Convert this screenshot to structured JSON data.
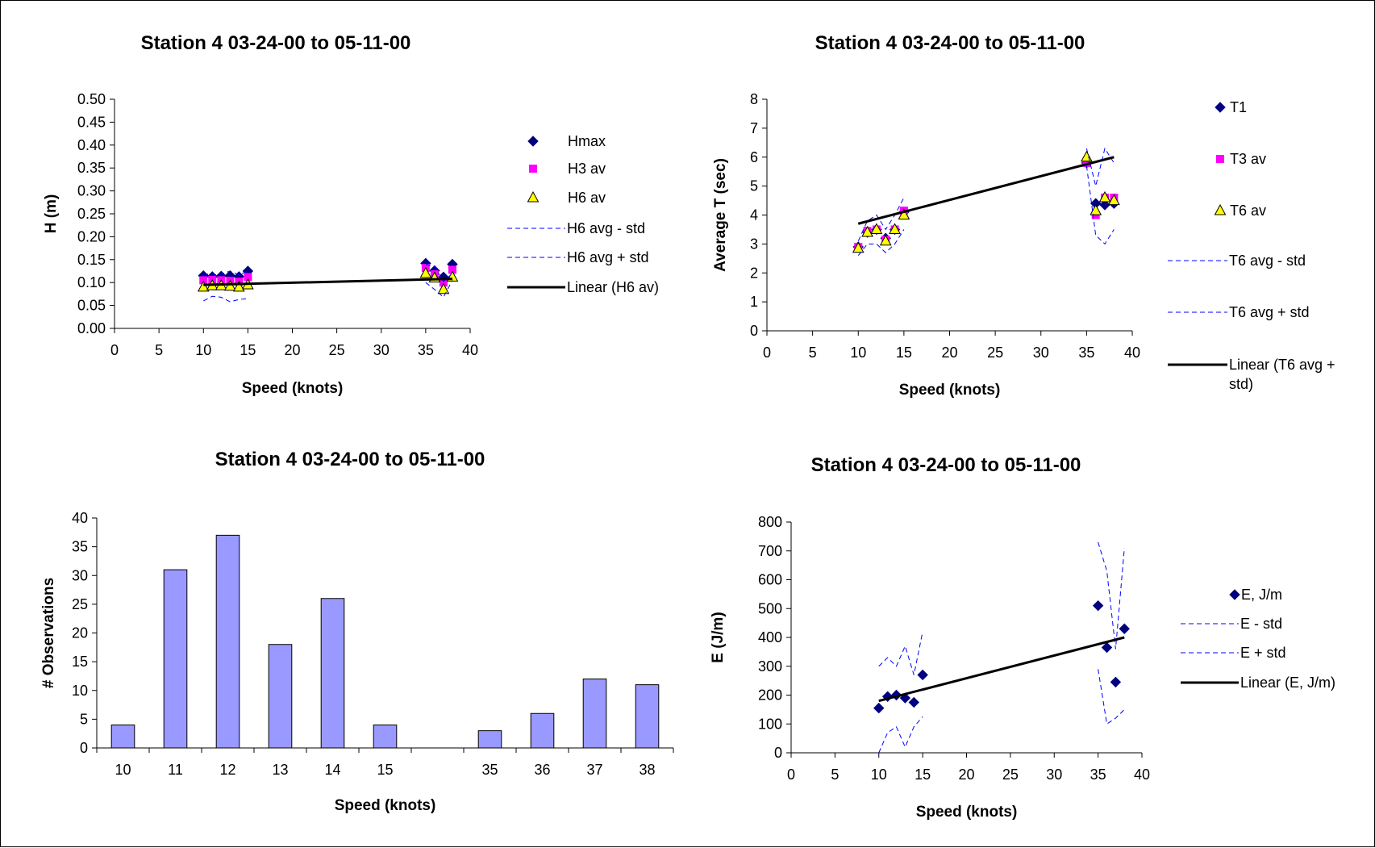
{
  "chart_data": [
    {
      "type": "scatter",
      "title": "Station 4 03-24-00 to 05-11-00",
      "xlabel": "Speed (knots)",
      "ylabel": "H (m)",
      "xlim": [
        0,
        40
      ],
      "ylim": [
        0,
        0.5
      ],
      "x_ticks": [
        "0",
        "5",
        "10",
        "15",
        "20",
        "25",
        "30",
        "35",
        "40"
      ],
      "y_ticks": [
        "0.00",
        "0.05",
        "0.10",
        "0.15",
        "0.20",
        "0.25",
        "0.30",
        "0.35",
        "0.40",
        "0.45",
        "0.50"
      ],
      "legend_position": "right",
      "x": [
        10,
        11,
        12,
        13,
        14,
        15,
        35,
        36,
        37,
        38
      ],
      "series": [
        {
          "name": "Hmax",
          "kind": "marker",
          "marker": "diamond",
          "color": "#000080",
          "values": [
            0.115,
            0.113,
            0.114,
            0.115,
            0.113,
            0.125,
            0.142,
            0.126,
            0.112,
            0.14
          ]
        },
        {
          "name": "H3 av",
          "kind": "marker",
          "marker": "square",
          "color": "#ff00ff",
          "values": [
            0.105,
            0.106,
            0.105,
            0.104,
            0.102,
            0.112,
            0.132,
            0.118,
            0.1,
            0.128
          ]
        },
        {
          "name": "H6 av",
          "kind": "marker",
          "marker": "triangle",
          "color": "#ffff00",
          "values": [
            0.09,
            0.093,
            0.093,
            0.092,
            0.09,
            0.095,
            0.12,
            0.11,
            0.085,
            0.112
          ]
        },
        {
          "name": "H6 avg - std",
          "kind": "dashed",
          "color": "#0000ff",
          "values": [
            0.06,
            0.07,
            0.068,
            0.058,
            0.063,
            0.065,
            0.1,
            0.085,
            0.068,
            0.105
          ]
        },
        {
          "name": "H6 avg + std",
          "kind": "dashed",
          "color": "#0000ff",
          "values": [
            0.12,
            0.116,
            0.119,
            0.125,
            0.117,
            0.125,
            0.14,
            0.135,
            0.102,
            0.12
          ]
        },
        {
          "name": "Linear (H6 av)",
          "kind": "trend",
          "color": "#000000",
          "x": [
            10,
            38
          ],
          "values": [
            0.095,
            0.108
          ]
        }
      ]
    },
    {
      "type": "scatter",
      "title": "Station 4 03-24-00 to 05-11-00",
      "xlabel": "Speed (knots)",
      "ylabel": "Average T (sec)",
      "xlim": [
        0,
        40
      ],
      "ylim": [
        0,
        8
      ],
      "x_ticks": [
        "0",
        "5",
        "10",
        "15",
        "20",
        "25",
        "30",
        "35",
        "40"
      ],
      "y_ticks": [
        "0",
        "1",
        "2",
        "3",
        "4",
        "5",
        "6",
        "7",
        "8"
      ],
      "legend_position": "right",
      "x": [
        10,
        11,
        12,
        13,
        14,
        15,
        35,
        36,
        37,
        38
      ],
      "series": [
        {
          "name": "T1",
          "kind": "marker",
          "marker": "diamond",
          "color": "#000080",
          "values": [
            2.9,
            3.4,
            3.5,
            3.2,
            3.5,
            4.1,
            5.8,
            4.4,
            4.35,
            4.4
          ]
        },
        {
          "name": "T3 av",
          "kind": "marker",
          "marker": "square",
          "color": "#ff00ff",
          "values": [
            2.9,
            3.45,
            3.5,
            3.15,
            3.5,
            4.15,
            5.8,
            4.0,
            4.6,
            4.6
          ]
        },
        {
          "name": "T6 av",
          "kind": "marker",
          "marker": "triangle",
          "color": "#ffff00",
          "values": [
            2.85,
            3.4,
            3.5,
            3.1,
            3.5,
            4.0,
            6.0,
            4.15,
            4.6,
            4.5
          ]
        },
        {
          "name": "T6 avg - std",
          "kind": "dashed",
          "color": "#0000ff",
          "values": [
            2.6,
            3.0,
            3.0,
            2.7,
            3.0,
            3.5,
            5.7,
            3.3,
            3.0,
            3.5
          ]
        },
        {
          "name": "T6 avg + std",
          "kind": "dashed",
          "color": "#0000ff",
          "values": [
            3.1,
            3.8,
            4.0,
            3.5,
            4.0,
            4.6,
            6.3,
            5.0,
            6.3,
            5.8
          ]
        },
        {
          "name": "Linear (T6 avg + std)",
          "kind": "trend",
          "color": "#000000",
          "x": [
            10,
            38
          ],
          "values": [
            3.7,
            6.0
          ]
        }
      ]
    },
    {
      "type": "bar",
      "title": "Station 4 03-24-00 to 05-11-00",
      "xlabel": "Speed (knots)",
      "ylabel": "# Observations",
      "ylim": [
        0,
        40
      ],
      "y_ticks": [
        "0",
        "5",
        "10",
        "15",
        "20",
        "25",
        "30",
        "35",
        "40"
      ],
      "categories": [
        "10",
        "11",
        "12",
        "13",
        "14",
        "15",
        "",
        "35",
        "36",
        "37",
        "38"
      ],
      "values": [
        4,
        31,
        37,
        18,
        26,
        4,
        0,
        3,
        6,
        12,
        11
      ],
      "bar_color": "#9999ff"
    },
    {
      "type": "scatter",
      "title": "Station 4 03-24-00 to 05-11-00",
      "xlabel": "Speed (knots)",
      "ylabel": "E (J/m)",
      "xlim": [
        0,
        40
      ],
      "ylim": [
        0,
        800
      ],
      "x_ticks": [
        "0",
        "5",
        "10",
        "15",
        "20",
        "25",
        "30",
        "35",
        "40"
      ],
      "y_ticks": [
        "0",
        "100",
        "200",
        "300",
        "400",
        "500",
        "600",
        "700",
        "800"
      ],
      "legend_position": "right",
      "x": [
        10,
        11,
        12,
        13,
        14,
        15,
        35,
        36,
        37,
        38
      ],
      "series": [
        {
          "name": "E, J/m",
          "kind": "marker",
          "marker": "diamond",
          "color": "#000080",
          "values": [
            155,
            195,
            200,
            190,
            175,
            270,
            510,
            365,
            245,
            430
          ]
        },
        {
          "name": "E - std",
          "kind": "dashed",
          "color": "#0000ff",
          "values": [
            0,
            70,
            90,
            20,
            90,
            125,
            290,
            100,
            120,
            150
          ]
        },
        {
          "name": "E + std",
          "kind": "dashed",
          "color": "#0000ff",
          "values": [
            300,
            330,
            300,
            370,
            270,
            420,
            730,
            630,
            360,
            710
          ]
        },
        {
          "name": "Linear (E, J/m)",
          "kind": "trend",
          "color": "#000000",
          "x": [
            10,
            38
          ],
          "values": [
            180,
            400
          ]
        }
      ]
    }
  ]
}
